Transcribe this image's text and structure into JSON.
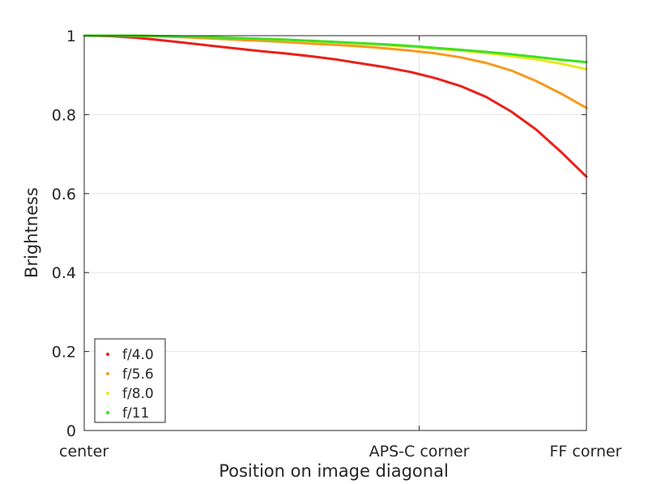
{
  "chart_data": {
    "type": "line",
    "title": "",
    "xlabel": "Position on image diagonal",
    "ylabel": "Brightness",
    "x_unit": "fraction of full-frame diagonal (0 = center, 1 = FF corner)",
    "xlim": [
      0,
      1
    ],
    "ylim": [
      0,
      1
    ],
    "x_ticks": [
      {
        "value": 0,
        "label": "center"
      },
      {
        "value": 0.667,
        "label": "APS-C corner"
      },
      {
        "value": 1,
        "label": "FF corner"
      }
    ],
    "y_ticks": [
      {
        "value": 0,
        "label": "0"
      },
      {
        "value": 0.2,
        "label": "0.2"
      },
      {
        "value": 0.4,
        "label": "0.4"
      },
      {
        "value": 0.6,
        "label": "0.6"
      },
      {
        "value": 0.8,
        "label": "0.8"
      },
      {
        "value": 1,
        "label": "1"
      }
    ],
    "grid": true,
    "legend_position": "bottom-left",
    "x": [
      0,
      0.05,
      0.1,
      0.15,
      0.2,
      0.25,
      0.3,
      0.35,
      0.4,
      0.45,
      0.5,
      0.55,
      0.6,
      0.65,
      0.7,
      0.75,
      0.8,
      0.85,
      0.9,
      0.95,
      1
    ],
    "series": [
      {
        "name": "f/4.0",
        "color": "#e8211b",
        "values": [
          1.0,
          0.999,
          0.995,
          0.989,
          0.982,
          0.975,
          0.968,
          0.961,
          0.955,
          0.948,
          0.94,
          0.93,
          0.92,
          0.908,
          0.892,
          0.872,
          0.845,
          0.808,
          0.762,
          0.705,
          0.643
        ]
      },
      {
        "name": "f/5.6",
        "color": "#f79a1e",
        "values": [
          1.0,
          1.0,
          0.999,
          0.998,
          0.996,
          0.993,
          0.99,
          0.987,
          0.984,
          0.98,
          0.977,
          0.973,
          0.968,
          0.962,
          0.955,
          0.945,
          0.931,
          0.912,
          0.885,
          0.853,
          0.817
        ]
      },
      {
        "name": "f/8.0",
        "color": "#e8e820",
        "values": [
          1.0,
          1.0,
          1.0,
          0.999,
          0.998,
          0.996,
          0.994,
          0.992,
          0.989,
          0.986,
          0.983,
          0.98,
          0.976,
          0.972,
          0.967,
          0.962,
          0.956,
          0.948,
          0.94,
          0.929,
          0.915
        ]
      },
      {
        "name": "f/11",
        "color": "#3fe024",
        "values": [
          1.0,
          1.0,
          1.0,
          0.999,
          0.998,
          0.996,
          0.994,
          0.992,
          0.99,
          0.987,
          0.984,
          0.981,
          0.978,
          0.974,
          0.969,
          0.964,
          0.959,
          0.953,
          0.946,
          0.939,
          0.933
        ]
      }
    ]
  }
}
